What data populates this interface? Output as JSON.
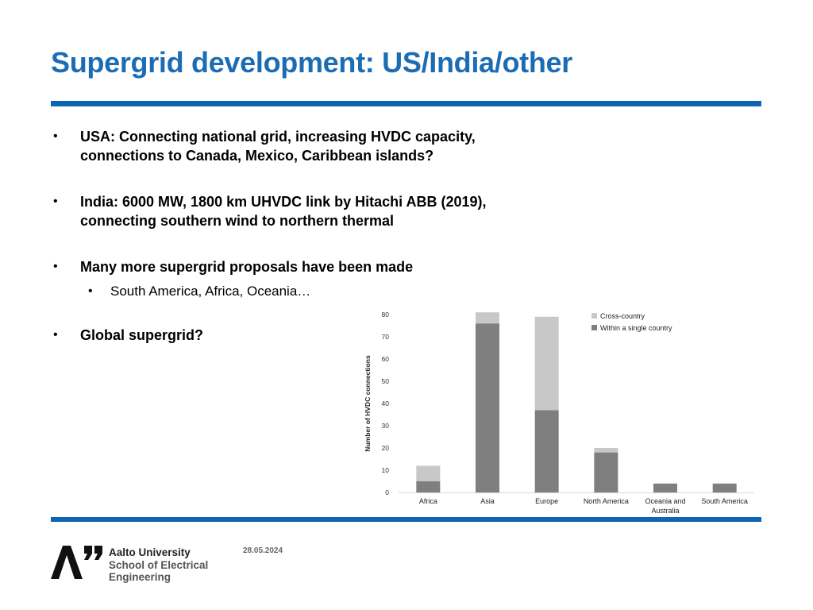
{
  "slide": {
    "title": "Supergrid development: US/India/other",
    "bullets": [
      {
        "marker": "•",
        "text": "USA: Connecting national grid, increasing HVDC capacity, connections to Canada, Mexico, Caribbean islands?"
      },
      {
        "marker": "•",
        "text": "India: 6000 MW, 1800 km UHVDC link by Hitachi ABB (2019), connecting southern wind to northern thermal"
      },
      {
        "marker": "•",
        "text": "Many more supergrid proposals have been made"
      },
      {
        "marker": "•",
        "text": "South America, Africa, Oceania…"
      },
      {
        "marker": "•",
        "text": "Global supergrid?"
      }
    ],
    "footer": {
      "university": "Aalto University",
      "school_line1": "School of Electrical",
      "school_line2": "Engineering",
      "date": "28.05.2024"
    }
  },
  "colors": {
    "title": "#1c6cb4",
    "rule": "#0e66b3",
    "within": "#7f7f7f",
    "cross": "#c8c8c8"
  },
  "chart_data": {
    "type": "bar",
    "stacked": true,
    "title": "",
    "xlabel": "",
    "ylabel": "Number of HVDC connections",
    "ylim": [
      0,
      80
    ],
    "yticks": [
      0,
      10,
      20,
      30,
      40,
      50,
      60,
      70,
      80
    ],
    "grid": false,
    "categories": [
      "Africa",
      "Asia",
      "Europe",
      "North America",
      "Oceania and Australia",
      "South America"
    ],
    "category_lines": [
      [
        "Africa"
      ],
      [
        "Asia"
      ],
      [
        "Europe"
      ],
      [
        "North America"
      ],
      [
        "Oceania and",
        "Australia"
      ],
      [
        "South America"
      ]
    ],
    "series": [
      {
        "name": "Within a single country",
        "values": [
          5,
          76,
          37,
          18,
          4,
          4
        ]
      },
      {
        "name": "Cross-country",
        "values": [
          7,
          5,
          42,
          2,
          0,
          0
        ]
      }
    ],
    "legend": {
      "position": "top-right",
      "entries": [
        "Cross-country",
        "Within a single country"
      ]
    }
  }
}
